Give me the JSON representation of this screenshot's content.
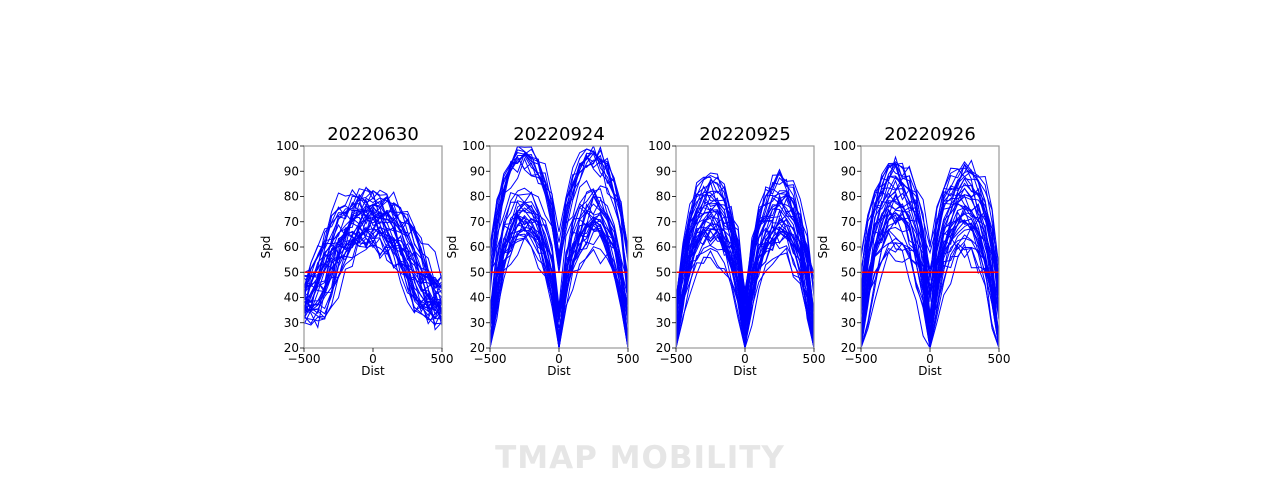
{
  "watermark": "TMAP MOBILITY",
  "chart_data": [
    {
      "type": "line",
      "title": "20220630",
      "xlabel": "Dist",
      "ylabel": "Spd",
      "xlim": [
        -500,
        500
      ],
      "ylim": [
        20,
        100
      ],
      "xticks": [
        "−500",
        "0",
        "500"
      ],
      "yticks": [
        "20",
        "30",
        "40",
        "50",
        "60",
        "70",
        "80",
        "90",
        "100"
      ],
      "series_color": "#0000ff",
      "reference_line": {
        "y": 50,
        "color": "#ff0000"
      },
      "profile": "hump",
      "num_series": 40,
      "peak_min": 62,
      "peak_max": 82,
      "grid": false
    },
    {
      "type": "line",
      "title": "20220924",
      "xlabel": "Dist",
      "ylabel": "Spd",
      "xlim": [
        -500,
        500
      ],
      "ylim": [
        20,
        100
      ],
      "xticks": [
        "−500",
        "0",
        "500"
      ],
      "yticks": [
        "20",
        "30",
        "40",
        "50",
        "60",
        "70",
        "80",
        "90",
        "100"
      ],
      "series_color": "#0000ff",
      "reference_line": {
        "y": 50,
        "color": "#ff0000"
      },
      "profile": "dip",
      "num_series": 40,
      "peak_min": 58,
      "peak_max": 100,
      "grid": false
    },
    {
      "type": "line",
      "title": "20220925",
      "xlabel": "Dist",
      "ylabel": "Spd",
      "xlim": [
        -500,
        500
      ],
      "ylim": [
        20,
        100
      ],
      "xticks": [
        "−500",
        "0",
        "500"
      ],
      "yticks": [
        "20",
        "30",
        "40",
        "50",
        "60",
        "70",
        "80",
        "90",
        "100"
      ],
      "series_color": "#0000ff",
      "reference_line": {
        "y": 50,
        "color": "#ff0000"
      },
      "profile": "dip",
      "num_series": 40,
      "peak_min": 56,
      "peak_max": 89,
      "grid": false
    },
    {
      "type": "line",
      "title": "20220926",
      "xlabel": "Dist",
      "ylabel": "Spd",
      "xlim": [
        -500,
        500
      ],
      "ylim": [
        20,
        100
      ],
      "xticks": [
        "−500",
        "0",
        "500"
      ],
      "yticks": [
        "20",
        "30",
        "40",
        "50",
        "60",
        "70",
        "80",
        "90",
        "100"
      ],
      "series_color": "#0000ff",
      "reference_line": {
        "y": 50,
        "color": "#ff0000"
      },
      "profile": "dip",
      "num_series": 40,
      "peak_min": 58,
      "peak_max": 93,
      "grid": false
    }
  ]
}
